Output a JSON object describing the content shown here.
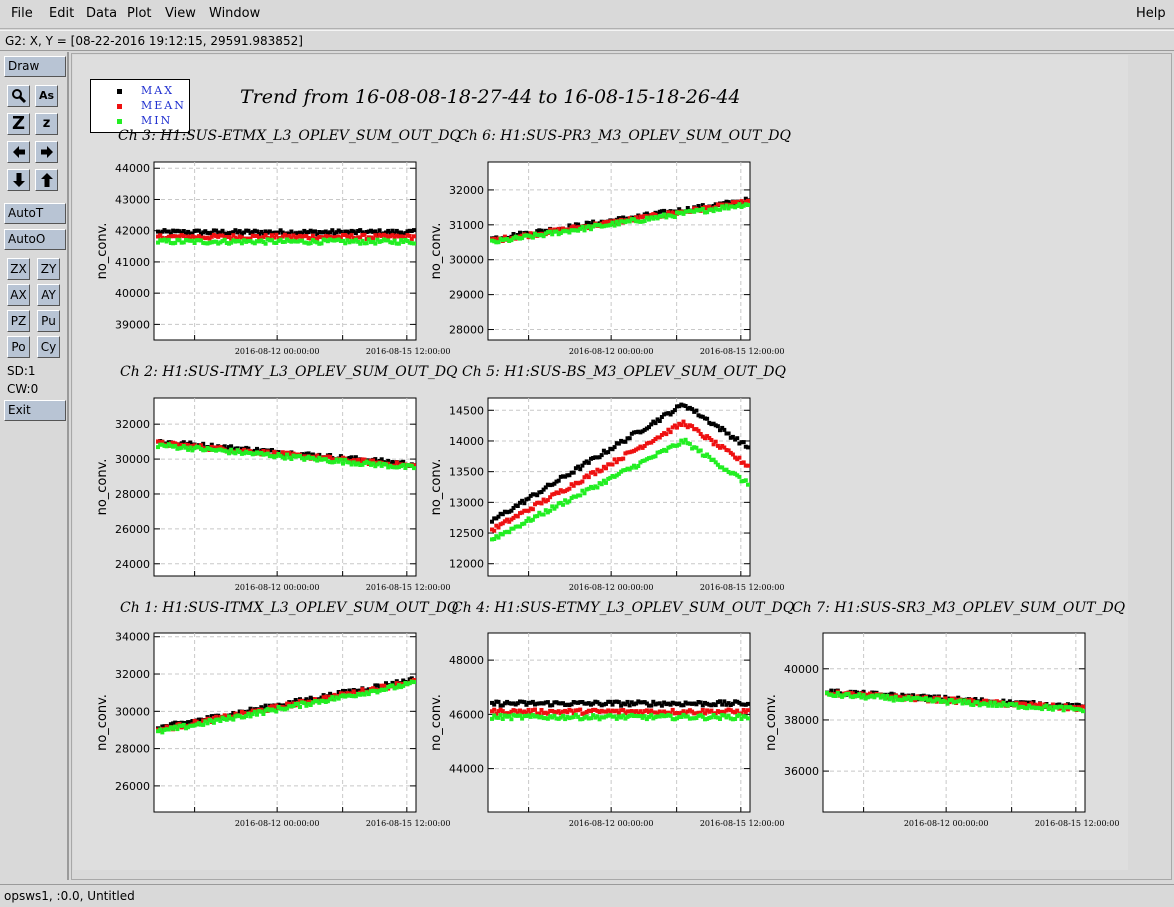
{
  "menu": {
    "file": "File",
    "edit": "Edit",
    "data": "Data",
    "plot": "Plot",
    "view": "View",
    "window": "Window",
    "help": "Help"
  },
  "cursor_readout": "G2: X, Y = [08-22-2016 19:12:15, 29591.983852]",
  "toolbar": {
    "draw": "Draw",
    "zoom_big": "Z",
    "zoom_small": "z",
    "autot": "AutoT",
    "autoo": "AutoO",
    "zx": "ZX",
    "zy": "ZY",
    "ax": "AX",
    "ay": "AY",
    "pz": "PZ",
    "pu": "Pu",
    "po": "Po",
    "cy": "Cy",
    "sd": "SD:1",
    "cw": "CW:0",
    "exit": "Exit",
    "magnify_label": "As"
  },
  "legend": {
    "max": "MAX",
    "mean": "MEAN",
    "min": "MIN"
  },
  "colors": {
    "max": "#000000",
    "mean": "#ee1111",
    "min": "#22ee22",
    "legend_text": "#2030d0"
  },
  "main_title": "Trend from 16-08-08-18-27-44 to 16-08-15-18-26-44",
  "status_bar": "opsws1, :0.0, Untitled",
  "chart_data": [
    {
      "type": "scatter",
      "title": "Ch 3: H1:SUS-ETMX_L3_OPLEV_SUM_OUT_DQ",
      "ylabel": "no_conv.",
      "xticks": [
        "2016-08-12 00:00:00",
        "2016-08-15 12:00:00"
      ],
      "ylim": [
        38500,
        44200
      ],
      "yticks": [
        39000,
        40000,
        41000,
        42000,
        43000,
        44000
      ],
      "series": [
        {
          "name": "MAX",
          "level": 41950
        },
        {
          "name": "MEAN",
          "level": 41800
        },
        {
          "name": "MIN",
          "level": 41650
        }
      ]
    },
    {
      "type": "scatter",
      "title": "Ch 6: H1:SUS-PR3_M3_OPLEV_SUM_OUT_DQ",
      "ylabel": "no_conv.",
      "xticks": [
        "2016-08-12 00:00:00",
        "2016-08-15 12:00:00"
      ],
      "ylim": [
        27700,
        32800
      ],
      "yticks": [
        28000,
        29000,
        30000,
        31000,
        32000
      ],
      "series": [
        {
          "name": "MAX",
          "start": 30600,
          "end": 31700
        },
        {
          "name": "MEAN",
          "start": 30550,
          "end": 31650
        },
        {
          "name": "MIN",
          "start": 30500,
          "end": 31600
        }
      ]
    },
    {
      "type": "scatter",
      "title": "Ch 2: H1:SUS-ITMY_L3_OPLEV_SUM_OUT_DQ",
      "ylabel": "no_conv.",
      "xticks": [
        "2016-08-12 00:00:00",
        "2016-08-15 12:00:00"
      ],
      "ylim": [
        23300,
        33500
      ],
      "yticks": [
        24000,
        26000,
        28000,
        30000,
        32000
      ],
      "series": [
        {
          "name": "MAX",
          "start": 31000,
          "end": 29700
        },
        {
          "name": "MEAN",
          "start": 30900,
          "end": 29600
        },
        {
          "name": "MIN",
          "start": 30800,
          "end": 29500
        }
      ]
    },
    {
      "type": "scatter",
      "title": "Ch 5: H1:SUS-BS_M3_OPLEV_SUM_OUT_DQ",
      "ylabel": "no_conv.",
      "xticks": [
        "2016-08-12 00:00:00",
        "2016-08-15 12:00:00"
      ],
      "ylim": [
        11800,
        14700
      ],
      "yticks": [
        12000,
        12500,
        13000,
        13500,
        14000,
        14500
      ],
      "series": [
        {
          "name": "MAX",
          "start": 12700,
          "peak": 14600,
          "end": 13900
        },
        {
          "name": "MEAN",
          "start": 12550,
          "peak": 14300,
          "end": 13600
        },
        {
          "name": "MIN",
          "start": 12400,
          "peak": 14000,
          "end": 13300
        }
      ]
    },
    {
      "type": "scatter",
      "title": "Ch 1: H1:SUS-ITMX_L3_OPLEV_SUM_OUT_DQ",
      "ylabel": "no_conv.",
      "xticks": [
        "2016-08-12 00:00:00",
        "2016-08-15 12:00:00"
      ],
      "ylim": [
        24600,
        34200
      ],
      "yticks": [
        26000,
        28000,
        30000,
        32000,
        34000
      ],
      "series": [
        {
          "name": "MAX",
          "start": 29100,
          "end": 31700
        },
        {
          "name": "MEAN",
          "start": 29000,
          "end": 31600
        },
        {
          "name": "MIN",
          "start": 28900,
          "end": 31500
        }
      ]
    },
    {
      "type": "scatter",
      "title": "Ch 4: H1:SUS-ETMY_L3_OPLEV_SUM_OUT_DQ",
      "ylabel": "no_conv.",
      "xticks": [
        "2016-08-12 00:00:00",
        "2016-08-15 12:00:00"
      ],
      "ylim": [
        42400,
        49000
      ],
      "yticks": [
        44000,
        46000,
        48000
      ],
      "series": [
        {
          "name": "MAX",
          "level": 46400
        },
        {
          "name": "MEAN",
          "level": 46100
        },
        {
          "name": "MIN",
          "level": 45900
        }
      ]
    },
    {
      "type": "scatter",
      "title": "Ch 7: H1:SUS-SR3_M3_OPLEV_SUM_OUT_DQ",
      "ylabel": "no_conv.",
      "xticks": [
        "2016-08-12 00:00:00",
        "2016-08-15 12:00:00"
      ],
      "ylim": [
        34400,
        41400
      ],
      "yticks": [
        36000,
        38000,
        40000
      ],
      "series": [
        {
          "name": "MAX",
          "start": 39100,
          "end": 38500
        },
        {
          "name": "MEAN",
          "start": 39050,
          "end": 38450
        },
        {
          "name": "MIN",
          "start": 39000,
          "end": 38400
        }
      ]
    }
  ]
}
